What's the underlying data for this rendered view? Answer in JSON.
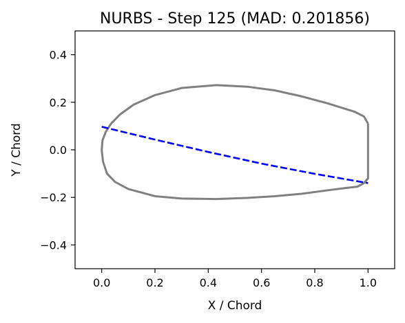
{
  "chart_data": {
    "type": "line",
    "title": "NURBS - Step 125 (MAD: 0.201856)",
    "xlabel": "X / Chord",
    "ylabel": "Y / Chord",
    "xlim": [
      -0.1,
      1.1
    ],
    "ylim": [
      -0.5,
      0.5
    ],
    "xticks": [
      0.0,
      0.2,
      0.4,
      0.6,
      0.8,
      1.0
    ],
    "xtick_labels": [
      "0.0",
      "0.2",
      "0.4",
      "0.6",
      "0.8",
      "1.0"
    ],
    "yticks": [
      -0.4,
      -0.2,
      0.0,
      0.2,
      0.4
    ],
    "ytick_labels": [
      "−0.4",
      "−0.2",
      "0.0",
      "0.2",
      "0.4"
    ],
    "grid": false,
    "series": [
      {
        "style": "solid",
        "color": "#808080",
        "x": [
          1.0,
          0.985,
          0.95,
          0.85,
          0.75,
          0.65,
          0.55,
          0.43,
          0.3,
          0.2,
          0.12,
          0.07,
          0.035,
          0.015,
          0.003,
          0.0,
          0.005,
          0.02,
          0.05,
          0.1,
          0.2,
          0.3,
          0.43,
          0.55,
          0.65,
          0.75,
          0.85,
          0.92,
          0.96,
          0.985,
          1.0,
          1.0
        ],
        "y": [
          0.11,
          0.14,
          0.16,
          0.195,
          0.225,
          0.25,
          0.265,
          0.272,
          0.26,
          0.23,
          0.19,
          0.15,
          0.11,
          0.075,
          0.04,
          0.0,
          -0.05,
          -0.1,
          -0.135,
          -0.165,
          -0.195,
          -0.205,
          -0.207,
          -0.202,
          -0.195,
          -0.185,
          -0.17,
          -0.16,
          -0.155,
          -0.14,
          -0.12,
          0.11
        ]
      },
      {
        "style": "dashed",
        "color": "#0000ff",
        "x": [
          0.0,
          0.2,
          0.4,
          0.6,
          0.8,
          1.0
        ],
        "y": [
          0.097,
          0.043,
          -0.009,
          -0.058,
          -0.101,
          -0.14
        ]
      }
    ]
  }
}
